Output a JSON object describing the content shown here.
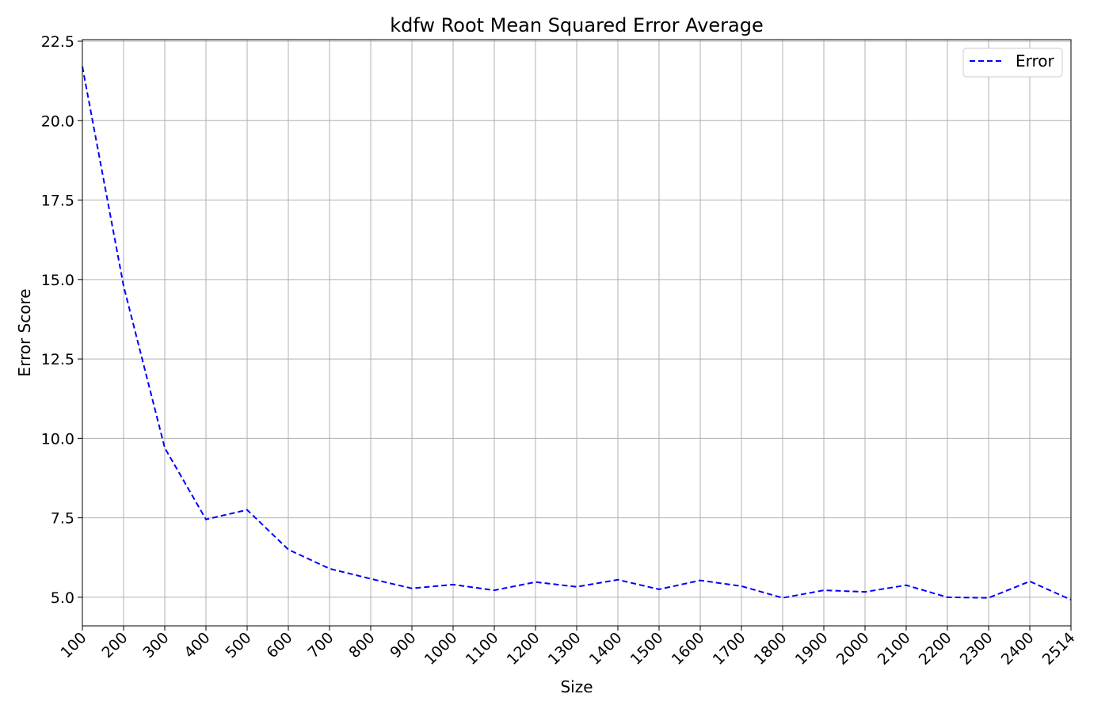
{
  "chart_data": {
    "type": "line",
    "title": "kdfw Root Mean Squared Error Average",
    "xlabel": "Size",
    "ylabel": "Error Score",
    "categories": [
      "100",
      "200",
      "300",
      "400",
      "500",
      "600",
      "700",
      "800",
      "900",
      "1000",
      "1100",
      "1200",
      "1300",
      "1400",
      "1500",
      "1600",
      "1700",
      "1800",
      "1900",
      "2000",
      "2100",
      "2200",
      "2300",
      "2400",
      "2514"
    ],
    "series": [
      {
        "name": "Error",
        "color": "#0000ff",
        "line_style": "dashed",
        "values": [
          21.7,
          14.8,
          9.7,
          7.45,
          7.75,
          6.5,
          5.9,
          5.58,
          5.28,
          5.4,
          5.22,
          5.48,
          5.33,
          5.55,
          5.25,
          5.53,
          5.35,
          4.98,
          5.22,
          5.17,
          5.38,
          5.0,
          4.98,
          5.5,
          4.92
        ]
      }
    ],
    "ylim": [
      4.1,
      22.55
    ],
    "yticks": [
      5.0,
      7.5,
      10.0,
      12.5,
      15.0,
      17.5,
      20.0,
      22.5
    ],
    "ytick_labels": [
      "5.0",
      "7.5",
      "10.0",
      "12.5",
      "15.0",
      "17.5",
      "20.0",
      "22.5"
    ],
    "grid": true,
    "legend_position": "top-right"
  }
}
